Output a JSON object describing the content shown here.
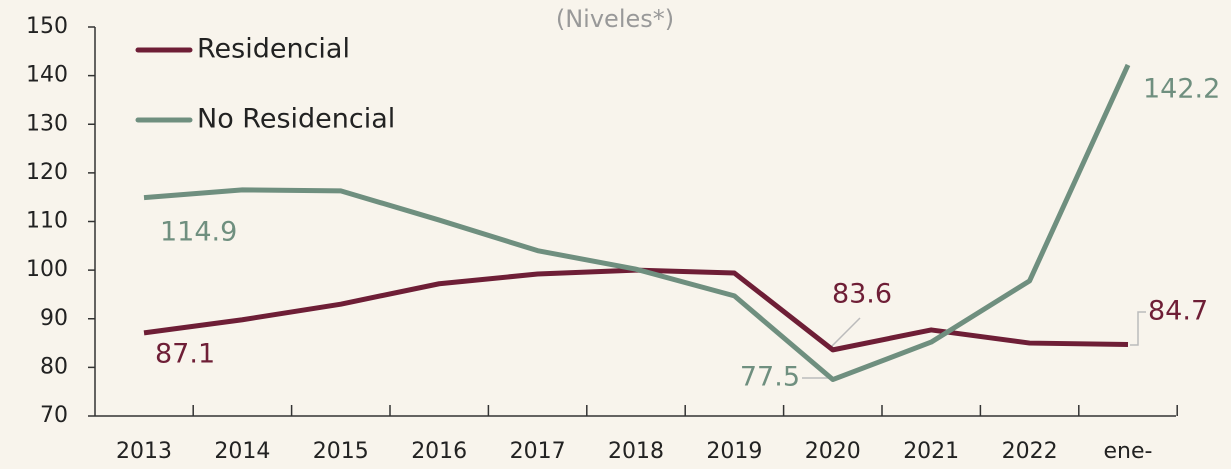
{
  "chart_data": {
    "type": "line",
    "subtitle": "(Niveles*)",
    "categories": [
      "2013",
      "2014",
      "2015",
      "2016",
      "2017",
      "2018",
      "2019",
      "2020",
      "2021",
      "2022",
      "ene-"
    ],
    "series": [
      {
        "name": "Residencial",
        "color": "#6e1e36",
        "values": [
          87.1,
          89.8,
          93.0,
          97.2,
          99.2,
          100.0,
          99.4,
          83.6,
          87.7,
          85.0,
          84.7
        ]
      },
      {
        "name": "No Residencial",
        "color": "#6f8f7f",
        "values": [
          114.9,
          116.5,
          116.3,
          110.3,
          104.0,
          100.2,
          94.7,
          77.5,
          85.2,
          97.8,
          142.2
        ]
      }
    ],
    "ylim": [
      70,
      150
    ],
    "yticks": [
      70,
      80,
      90,
      100,
      110,
      120,
      130,
      140,
      150
    ]
  }
}
